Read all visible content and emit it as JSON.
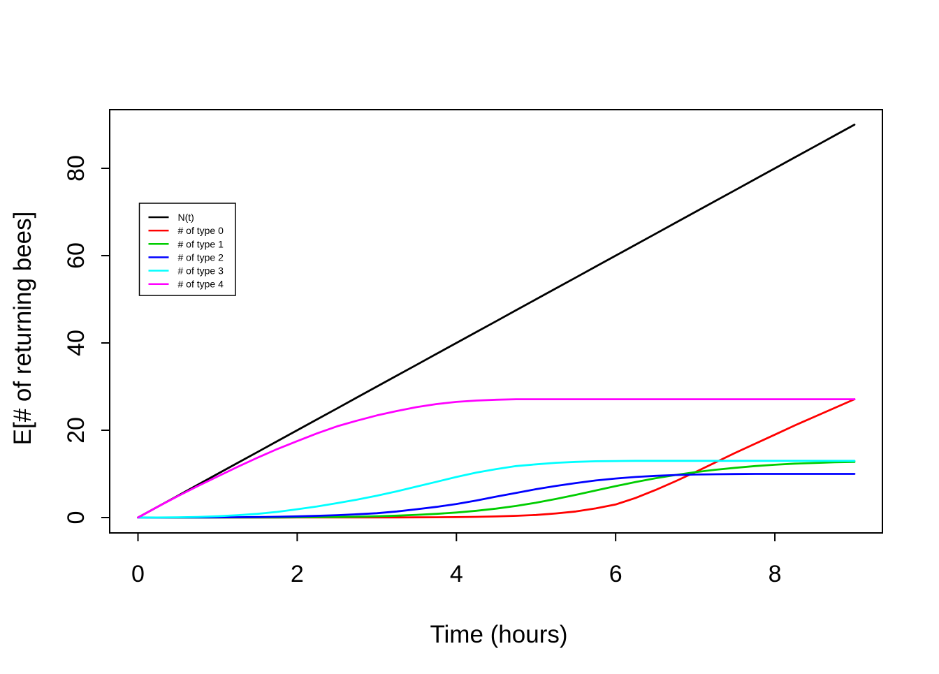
{
  "window": {
    "background_color": "#ffffff",
    "plot_border_color": "#000000"
  },
  "chart_data": {
    "type": "line",
    "title": "",
    "xlabel": "Time (hours)",
    "ylabel": "E[# of returning bees]",
    "xlim": [
      0,
      9
    ],
    "ylim": [
      0,
      90
    ],
    "x_ticks": [
      0,
      2,
      4,
      6,
      8
    ],
    "y_ticks": [
      0,
      20,
      40,
      60,
      80
    ],
    "grid": false,
    "legend_position": "upper-left-inside",
    "x": [
      0,
      0.25,
      0.5,
      0.75,
      1,
      1.25,
      1.5,
      1.75,
      2,
      2.25,
      2.5,
      2.75,
      3,
      3.25,
      3.5,
      3.75,
      4,
      4.25,
      4.5,
      4.75,
      5,
      5.25,
      5.5,
      5.75,
      6,
      6.25,
      6.5,
      6.75,
      7,
      7.25,
      7.5,
      7.75,
      8,
      8.25,
      8.5,
      8.75,
      9
    ],
    "series": [
      {
        "name": "N(t)",
        "color": "#000000",
        "values": [
          0,
          2.5,
          5,
          7.5,
          10,
          12.5,
          15,
          17.5,
          20,
          22.5,
          25,
          27.5,
          30,
          32.5,
          35,
          37.5,
          40,
          42.5,
          45,
          47.5,
          50,
          52.5,
          55,
          57.5,
          60,
          62.5,
          65,
          67.5,
          70,
          72.5,
          75,
          77.5,
          80,
          82.5,
          85,
          87.5,
          90
        ]
      },
      {
        "name": "# of type 0",
        "color": "#FF0000",
        "values": [
          0,
          0,
          0,
          0,
          0,
          0,
          0,
          0,
          0.01,
          0.01,
          0.02,
          0.02,
          0.03,
          0.04,
          0.05,
          0.07,
          0.1,
          0.16,
          0.25,
          0.4,
          0.6,
          0.95,
          1.4,
          2.1,
          3.0,
          4.5,
          6.3,
          8.3,
          10.4,
          12.6,
          14.8,
          16.9,
          19.0,
          21.1,
          23.1,
          25.1,
          27.1
        ]
      },
      {
        "name": "# of type 1",
        "color": "#00CD00",
        "values": [
          0,
          0,
          0,
          0,
          0.01,
          0.02,
          0.03,
          0.04,
          0.06,
          0.09,
          0.13,
          0.2,
          0.3,
          0.44,
          0.62,
          0.85,
          1.15,
          1.55,
          2.05,
          2.65,
          3.4,
          4.25,
          5.2,
          6.2,
          7.2,
          8.15,
          9.0,
          9.75,
          10.4,
          10.95,
          11.4,
          11.8,
          12.1,
          12.35,
          12.5,
          12.65,
          12.75
        ]
      },
      {
        "name": "# of type 2",
        "color": "#0000FF",
        "values": [
          0,
          0,
          0.01,
          0.03,
          0.05,
          0.08,
          0.12,
          0.18,
          0.27,
          0.4,
          0.55,
          0.75,
          1.0,
          1.4,
          1.9,
          2.45,
          3.1,
          3.9,
          4.8,
          5.65,
          6.5,
          7.25,
          7.9,
          8.5,
          8.95,
          9.3,
          9.55,
          9.75,
          9.85,
          9.92,
          9.97,
          10,
          10,
          10,
          10,
          10,
          10
        ]
      },
      {
        "name": "# of type 3",
        "color": "#00FFFF",
        "values": [
          0,
          0.02,
          0.06,
          0.15,
          0.3,
          0.55,
          0.85,
          1.3,
          1.9,
          2.55,
          3.3,
          4.1,
          5.0,
          6.0,
          7.1,
          8.2,
          9.3,
          10.3,
          11.1,
          11.8,
          12.2,
          12.55,
          12.75,
          12.9,
          12.95,
          13,
          13,
          13,
          13,
          13,
          13,
          13,
          13,
          13,
          13,
          13,
          13
        ]
      },
      {
        "name": "# of type 4",
        "color": "#FF00FF",
        "values": [
          0,
          2.5,
          4.9,
          7.2,
          9.4,
          11.6,
          13.7,
          15.7,
          17.5,
          19.3,
          20.9,
          22.2,
          23.4,
          24.4,
          25.3,
          26.0,
          26.5,
          26.8,
          27.0,
          27.1,
          27.1,
          27.1,
          27.1,
          27.1,
          27.1,
          27.1,
          27.1,
          27.1,
          27.1,
          27.1,
          27.1,
          27.1,
          27.1,
          27.1,
          27.1,
          27.1,
          27.1
        ]
      }
    ]
  }
}
